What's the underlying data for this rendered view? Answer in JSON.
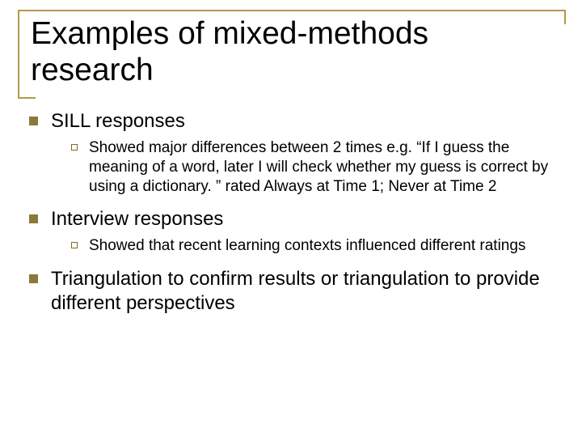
{
  "title": "Examples of mixed-methods research",
  "colors": {
    "border": "#b29a4a",
    "bullet_l1": "#8a7a3a",
    "bullet_l2_border": "#7a6c33",
    "text": "#000000",
    "background": "#ffffff"
  },
  "typography": {
    "title_fontsize": 39,
    "lvl1_fontsize": 24,
    "lvl2_fontsize": 19,
    "font_family": "Arial"
  },
  "items": [
    {
      "label": "SILL responses",
      "sub": [
        "Showed major differences between 2 times e.g. “If I guess the meaning of a word, later I will check whether my guess is correct by using a dictionary. ” rated Always at Time 1; Never at Time 2"
      ]
    },
    {
      "label": "Interview responses",
      "sub": [
        "Showed that recent learning contexts influenced different ratings"
      ]
    },
    {
      "label": "Triangulation to confirm results or triangulation to provide different perspectives",
      "sub": []
    }
  ]
}
